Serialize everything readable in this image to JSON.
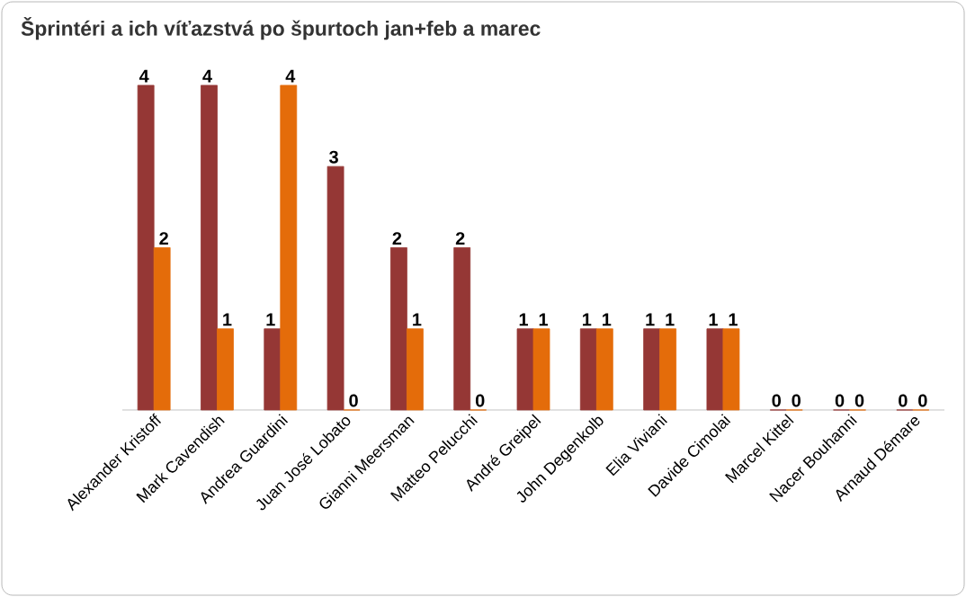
{
  "chart_data": {
    "type": "bar",
    "title": "Šprintéri a ich víťazstvá po špurtoch jan+feb a marec",
    "categories": [
      "Alexander Kristoff",
      "Mark Cavendish",
      "Andrea Guardini",
      "Juan José Lobato",
      "Gianni Meersman",
      "Matteo Pelucchi",
      "André Greipel",
      "John Degenkolb",
      "Elia Viviani",
      "Davide Cimolai",
      "Marcel Kittel",
      "Nacer Bouhanni",
      "Arnaud Démare"
    ],
    "series": [
      {
        "color": "#953735",
        "values": [
          4,
          4,
          1,
          3,
          2,
          2,
          1,
          1,
          1,
          1,
          0,
          0,
          0
        ]
      },
      {
        "color": "#e46c0a",
        "values": [
          2,
          1,
          4,
          0,
          1,
          0,
          1,
          1,
          1,
          1,
          0,
          0,
          0
        ]
      }
    ],
    "data_labels": true
  }
}
